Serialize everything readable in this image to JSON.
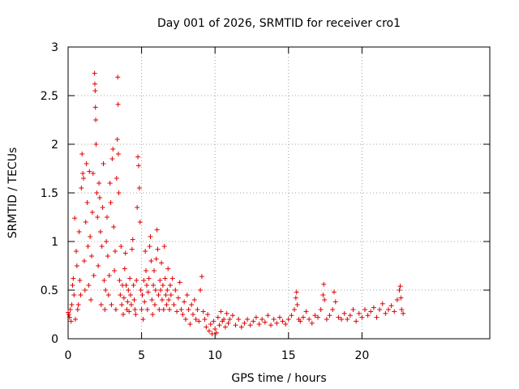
{
  "chart_data": {
    "type": "scatter",
    "title": "Day 001 of 2026, SRMTID for receiver cro1",
    "xlabel": "GPS time / hours",
    "ylabel": "SRMTID / TECUs",
    "xlim": [
      0,
      28.7
    ],
    "ylim": [
      0,
      3
    ],
    "xticks": [
      0,
      5,
      10,
      15,
      20
    ],
    "yticks": [
      0,
      0.5,
      1,
      1.5,
      2,
      2.5,
      3
    ],
    "xtick_labels": [
      "0",
      "5",
      "10",
      "15",
      "20"
    ],
    "ytick_labels": [
      "0",
      "0.5",
      "1",
      "1.5",
      "2",
      "2.5",
      "3"
    ],
    "grid": true,
    "marker": "+",
    "color": "#e00000",
    "series": [
      {
        "name": "cro1",
        "points": [
          [
            0.0,
            0.27
          ],
          [
            0.05,
            0.25
          ],
          [
            0.1,
            0.22
          ],
          [
            0.15,
            0.3
          ],
          [
            0.2,
            0.18
          ],
          [
            0.25,
            0.35
          ],
          [
            0.3,
            0.55
          ],
          [
            0.35,
            0.62
          ],
          [
            0.4,
            0.45
          ],
          [
            0.45,
            1.24
          ],
          [
            0.5,
            0.2
          ],
          [
            0.55,
            0.9
          ],
          [
            0.6,
            0.75
          ],
          [
            0.65,
            0.3
          ],
          [
            0.7,
            0.35
          ],
          [
            0.75,
            1.1
          ],
          [
            0.8,
            0.6
          ],
          [
            0.85,
            0.45
          ],
          [
            0.9,
            1.55
          ],
          [
            0.95,
            1.9
          ],
          [
            1.0,
            1.7
          ],
          [
            1.05,
            1.65
          ],
          [
            1.1,
            0.8
          ],
          [
            1.15,
            0.5
          ],
          [
            1.2,
            1.2
          ],
          [
            1.25,
            1.8
          ],
          [
            1.3,
            1.4
          ],
          [
            1.35,
            0.95
          ],
          [
            1.4,
            0.55
          ],
          [
            1.45,
            1.72
          ],
          [
            1.5,
            1.05
          ],
          [
            1.55,
            0.4
          ],
          [
            1.6,
            0.85
          ],
          [
            1.65,
            1.3
          ],
          [
            1.7,
            1.7
          ],
          [
            1.75,
            0.65
          ],
          [
            1.8,
            2.73
          ],
          [
            1.82,
            2.62
          ],
          [
            1.84,
            2.55
          ],
          [
            1.86,
            2.38
          ],
          [
            1.88,
            2.25
          ],
          [
            1.9,
            2.0
          ],
          [
            1.95,
            1.5
          ],
          [
            2.0,
            1.25
          ],
          [
            2.05,
            0.75
          ],
          [
            2.1,
            1.6
          ],
          [
            2.15,
            1.45
          ],
          [
            2.2,
            1.1
          ],
          [
            2.25,
            0.35
          ],
          [
            2.3,
            0.95
          ],
          [
            2.35,
            1.35
          ],
          [
            2.4,
            1.8
          ],
          [
            2.45,
            0.6
          ],
          [
            2.5,
            0.3
          ],
          [
            2.55,
            0.5
          ],
          [
            2.6,
            1.0
          ],
          [
            2.65,
            1.25
          ],
          [
            2.7,
            0.85
          ],
          [
            2.75,
            0.45
          ],
          [
            2.8,
            0.65
          ],
          [
            2.85,
            1.6
          ],
          [
            2.9,
            1.4
          ],
          [
            2.95,
            0.35
          ],
          [
            3.0,
            1.85
          ],
          [
            3.05,
            1.95
          ],
          [
            3.1,
            1.15
          ],
          [
            3.15,
            0.7
          ],
          [
            3.2,
            0.9
          ],
          [
            3.25,
            0.3
          ],
          [
            3.3,
            1.65
          ],
          [
            3.35,
            2.05
          ],
          [
            3.38,
            2.69
          ],
          [
            3.4,
            2.41
          ],
          [
            3.42,
            1.9
          ],
          [
            3.45,
            1.5
          ],
          [
            3.5,
            0.6
          ],
          [
            3.55,
            0.45
          ],
          [
            3.6,
            0.95
          ],
          [
            3.65,
            0.35
          ],
          [
            3.7,
            0.55
          ],
          [
            3.75,
            0.25
          ],
          [
            3.8,
            0.42
          ],
          [
            3.85,
            0.72
          ],
          [
            3.9,
            0.88
          ],
          [
            3.95,
            0.55
          ],
          [
            4.0,
            0.3
          ],
          [
            4.05,
            0.38
          ],
          [
            4.1,
            0.5
          ],
          [
            4.15,
            0.28
          ],
          [
            4.2,
            0.62
          ],
          [
            4.25,
            0.45
          ],
          [
            4.3,
            0.35
          ],
          [
            4.35,
            0.92
          ],
          [
            4.4,
            1.02
          ],
          [
            4.45,
            0.55
          ],
          [
            4.5,
            0.4
          ],
          [
            4.55,
            0.3
          ],
          [
            4.6,
            0.25
          ],
          [
            4.65,
            0.6
          ],
          [
            4.7,
            1.35
          ],
          [
            4.75,
            1.87
          ],
          [
            4.8,
            1.78
          ],
          [
            4.85,
            1.55
          ],
          [
            4.9,
            1.2
          ],
          [
            4.95,
            0.5
          ],
          [
            5.0,
            0.3
          ],
          [
            5.05,
            0.45
          ],
          [
            5.1,
            0.2
          ],
          [
            5.15,
            0.6
          ],
          [
            5.2,
            0.38
          ],
          [
            5.25,
            0.9
          ],
          [
            5.3,
            0.7
          ],
          [
            5.35,
            0.55
          ],
          [
            5.4,
            0.3
          ],
          [
            5.45,
            0.48
          ],
          [
            5.5,
            0.62
          ],
          [
            5.55,
            0.95
          ],
          [
            5.6,
            1.05
          ],
          [
            5.65,
            0.8
          ],
          [
            5.7,
            0.4
          ],
          [
            5.75,
            0.25
          ],
          [
            5.8,
            0.55
          ],
          [
            5.85,
            0.7
          ],
          [
            5.9,
            0.35
          ],
          [
            5.95,
            0.5
          ],
          [
            6.0,
            0.82
          ],
          [
            6.05,
            1.12
          ],
          [
            6.1,
            0.92
          ],
          [
            6.15,
            0.45
          ],
          [
            6.2,
            0.3
          ],
          [
            6.25,
            0.6
          ],
          [
            6.3,
            0.5
          ],
          [
            6.35,
            0.78
          ],
          [
            6.4,
            0.4
          ],
          [
            6.45,
            0.55
          ],
          [
            6.5,
            0.3
          ],
          [
            6.55,
            0.95
          ],
          [
            6.6,
            0.62
          ],
          [
            6.65,
            0.45
          ],
          [
            6.7,
            0.35
          ],
          [
            6.75,
            0.5
          ],
          [
            6.8,
            0.72
          ],
          [
            6.85,
            0.4
          ],
          [
            6.9,
            0.3
          ],
          [
            6.95,
            0.55
          ],
          [
            7.0,
            0.45
          ],
          [
            7.1,
            0.62
          ],
          [
            7.2,
            0.35
          ],
          [
            7.3,
            0.5
          ],
          [
            7.4,
            0.28
          ],
          [
            7.5,
            0.42
          ],
          [
            7.6,
            0.58
          ],
          [
            7.7,
            0.3
          ],
          [
            7.8,
            0.25
          ],
          [
            7.9,
            0.38
          ],
          [
            8.0,
            0.2
          ],
          [
            8.1,
            0.45
          ],
          [
            8.2,
            0.3
          ],
          [
            8.3,
            0.15
          ],
          [
            8.4,
            0.35
          ],
          [
            8.5,
            0.25
          ],
          [
            8.6,
            0.4
          ],
          [
            8.7,
            0.2
          ],
          [
            8.8,
            0.3
          ],
          [
            8.9,
            0.18
          ],
          [
            9.0,
            0.5
          ],
          [
            9.1,
            0.64
          ],
          [
            9.2,
            0.28
          ],
          [
            9.3,
            0.2
          ],
          [
            9.4,
            0.12
          ],
          [
            9.5,
            0.25
          ],
          [
            9.6,
            0.08
          ],
          [
            9.7,
            0.15
          ],
          [
            9.8,
            0.05
          ],
          [
            9.9,
            0.18
          ],
          [
            10.0,
            0.1
          ],
          [
            10.1,
            0.06
          ],
          [
            10.2,
            0.22
          ],
          [
            10.3,
            0.14
          ],
          [
            10.4,
            0.28
          ],
          [
            10.5,
            0.18
          ],
          [
            10.6,
            0.2
          ],
          [
            10.7,
            0.12
          ],
          [
            10.8,
            0.26
          ],
          [
            10.9,
            0.16
          ],
          [
            11.0,
            0.2
          ],
          [
            11.2,
            0.24
          ],
          [
            11.4,
            0.14
          ],
          [
            11.6,
            0.2
          ],
          [
            11.8,
            0.12
          ],
          [
            12.0,
            0.16
          ],
          [
            12.2,
            0.2
          ],
          [
            12.4,
            0.14
          ],
          [
            12.6,
            0.18
          ],
          [
            12.8,
            0.22
          ],
          [
            13.0,
            0.15
          ],
          [
            13.2,
            0.2
          ],
          [
            13.4,
            0.17
          ],
          [
            13.6,
            0.24
          ],
          [
            13.8,
            0.14
          ],
          [
            14.0,
            0.2
          ],
          [
            14.2,
            0.16
          ],
          [
            14.4,
            0.22
          ],
          [
            14.6,
            0.18
          ],
          [
            14.8,
            0.15
          ],
          [
            15.0,
            0.2
          ],
          [
            15.2,
            0.24
          ],
          [
            15.4,
            0.3
          ],
          [
            15.5,
            0.42
          ],
          [
            15.55,
            0.48
          ],
          [
            15.6,
            0.35
          ],
          [
            15.7,
            0.2
          ],
          [
            15.8,
            0.18
          ],
          [
            16.0,
            0.22
          ],
          [
            16.2,
            0.28
          ],
          [
            16.4,
            0.2
          ],
          [
            16.6,
            0.16
          ],
          [
            16.8,
            0.24
          ],
          [
            17.0,
            0.22
          ],
          [
            17.2,
            0.3
          ],
          [
            17.35,
            0.45
          ],
          [
            17.4,
            0.56
          ],
          [
            17.45,
            0.4
          ],
          [
            17.6,
            0.2
          ],
          [
            17.8,
            0.24
          ],
          [
            18.0,
            0.3
          ],
          [
            18.1,
            0.48
          ],
          [
            18.2,
            0.38
          ],
          [
            18.4,
            0.22
          ],
          [
            18.6,
            0.2
          ],
          [
            18.8,
            0.26
          ],
          [
            19.0,
            0.2
          ],
          [
            19.2,
            0.24
          ],
          [
            19.4,
            0.3
          ],
          [
            19.6,
            0.18
          ],
          [
            19.8,
            0.26
          ],
          [
            20.0,
            0.22
          ],
          [
            20.2,
            0.3
          ],
          [
            20.4,
            0.24
          ],
          [
            20.6,
            0.28
          ],
          [
            20.8,
            0.32
          ],
          [
            21.0,
            0.22
          ],
          [
            21.2,
            0.3
          ],
          [
            21.4,
            0.36
          ],
          [
            21.6,
            0.26
          ],
          [
            21.8,
            0.3
          ],
          [
            22.0,
            0.34
          ],
          [
            22.2,
            0.28
          ],
          [
            22.4,
            0.4
          ],
          [
            22.55,
            0.5
          ],
          [
            22.6,
            0.54
          ],
          [
            22.65,
            0.42
          ],
          [
            22.7,
            0.3
          ],
          [
            22.8,
            0.26
          ]
        ]
      }
    ]
  }
}
